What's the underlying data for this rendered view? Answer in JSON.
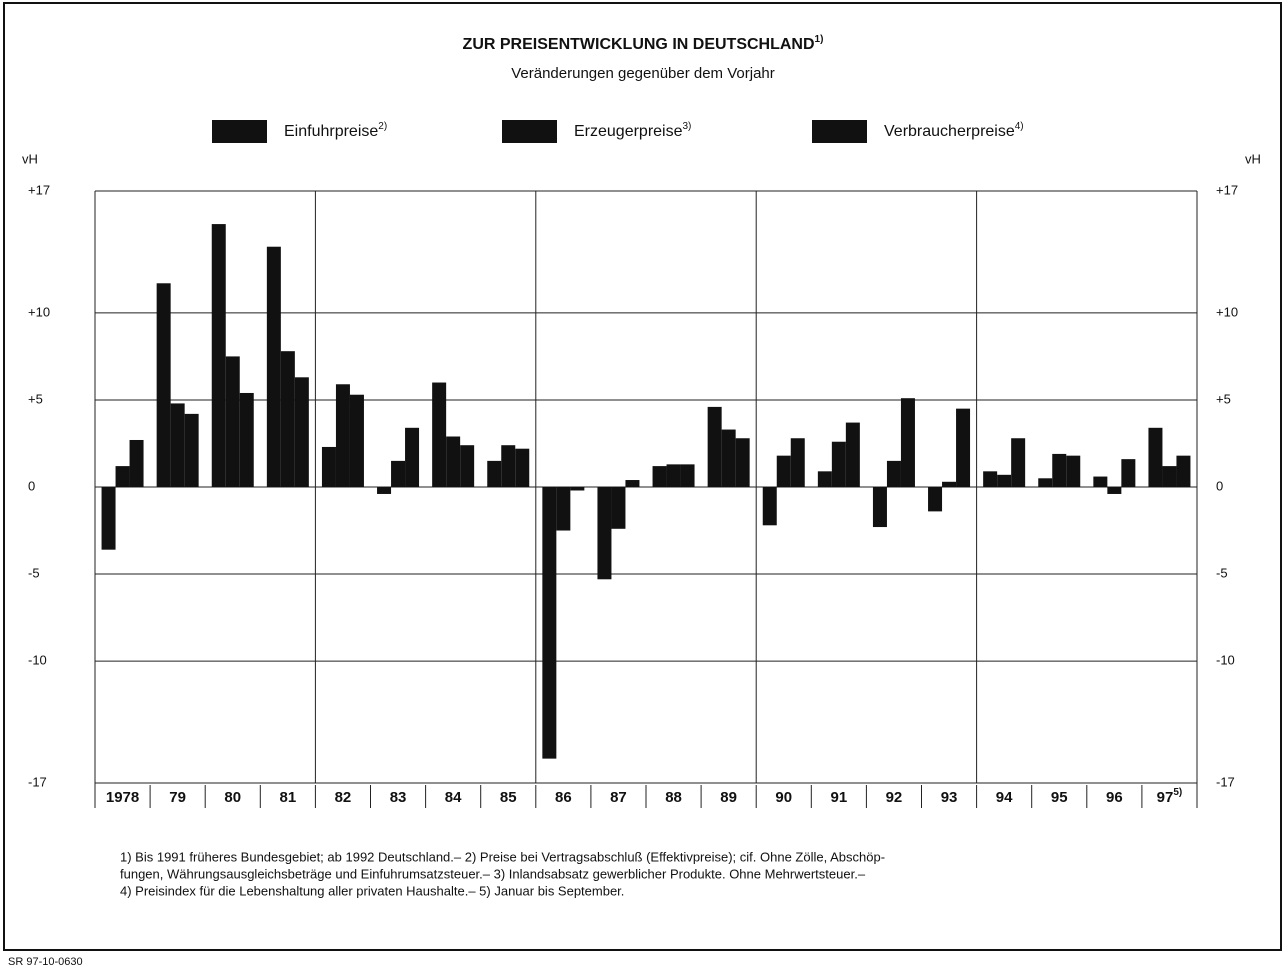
{
  "chart_data": {
    "type": "bar",
    "title": "ZUR PREISENTWICKLUNG IN DEUTSCHLAND",
    "title_note": "1)",
    "subtitle": "Veränderungen gegenüber dem Vorjahr",
    "y_label": "vH",
    "y2_label": "vH",
    "categories": [
      "1978",
      "79",
      "80",
      "81",
      "82",
      "83",
      "84",
      "85",
      "86",
      "87",
      "88",
      "89",
      "90",
      "91",
      "92",
      "93",
      "94",
      "95",
      "96",
      "97"
    ],
    "last_category_note": "5)",
    "series": [
      {
        "name": "Einfuhrpreise",
        "name_note": "2)",
        "color": "#111111",
        "values": [
          -3.6,
          11.7,
          15.1,
          13.8,
          2.3,
          -0.4,
          6.0,
          1.5,
          -15.6,
          -5.3,
          1.2,
          4.6,
          -2.2,
          0.9,
          -2.3,
          -1.4,
          0.9,
          0.5,
          0.6,
          3.4
        ]
      },
      {
        "name": "Erzeugerpreise",
        "name_note": "3)",
        "color": "#111111",
        "values": [
          1.2,
          4.8,
          7.5,
          7.8,
          5.9,
          1.5,
          2.9,
          2.4,
          -2.5,
          -2.4,
          1.3,
          3.3,
          1.8,
          2.6,
          1.5,
          0.3,
          0.7,
          1.9,
          -0.4,
          1.2
        ]
      },
      {
        "name": "Verbraucherpreise",
        "name_note": "4)",
        "color": "#111111",
        "values": [
          2.7,
          4.2,
          5.4,
          6.3,
          5.3,
          3.4,
          2.4,
          2.2,
          -0.2,
          0.4,
          1.3,
          2.8,
          2.8,
          3.7,
          5.1,
          4.5,
          2.8,
          1.8,
          1.6,
          1.8
        ]
      }
    ],
    "ylim": [
      -17,
      17
    ],
    "yticks": [
      {
        "value": 17,
        "label": "+17"
      },
      {
        "value": 10,
        "label": "+10"
      },
      {
        "value": 5,
        "label": "+5"
      },
      0,
      -5,
      -10,
      -17
    ],
    "grid": true,
    "footnotes": [
      "1) Bis 1991 früheres Bundesgebiet; ab 1992 Deutschland.– 2) Preise bei Vertragsabschluß (Effektivpreise); cif. Ohne Zölle, Abschöp-",
      "fungen, Währungsausgleichsbeträge und Einfuhrumsatzsteuer.– 3) Inlandsabsatz gewerblicher Produkte. Ohne Mehrwertsteuer.–",
      "4) Preisindex für die Lebenshaltung aller privaten Haushalte.– 5) Januar bis September."
    ],
    "source": "SR 97-10-0630"
  }
}
